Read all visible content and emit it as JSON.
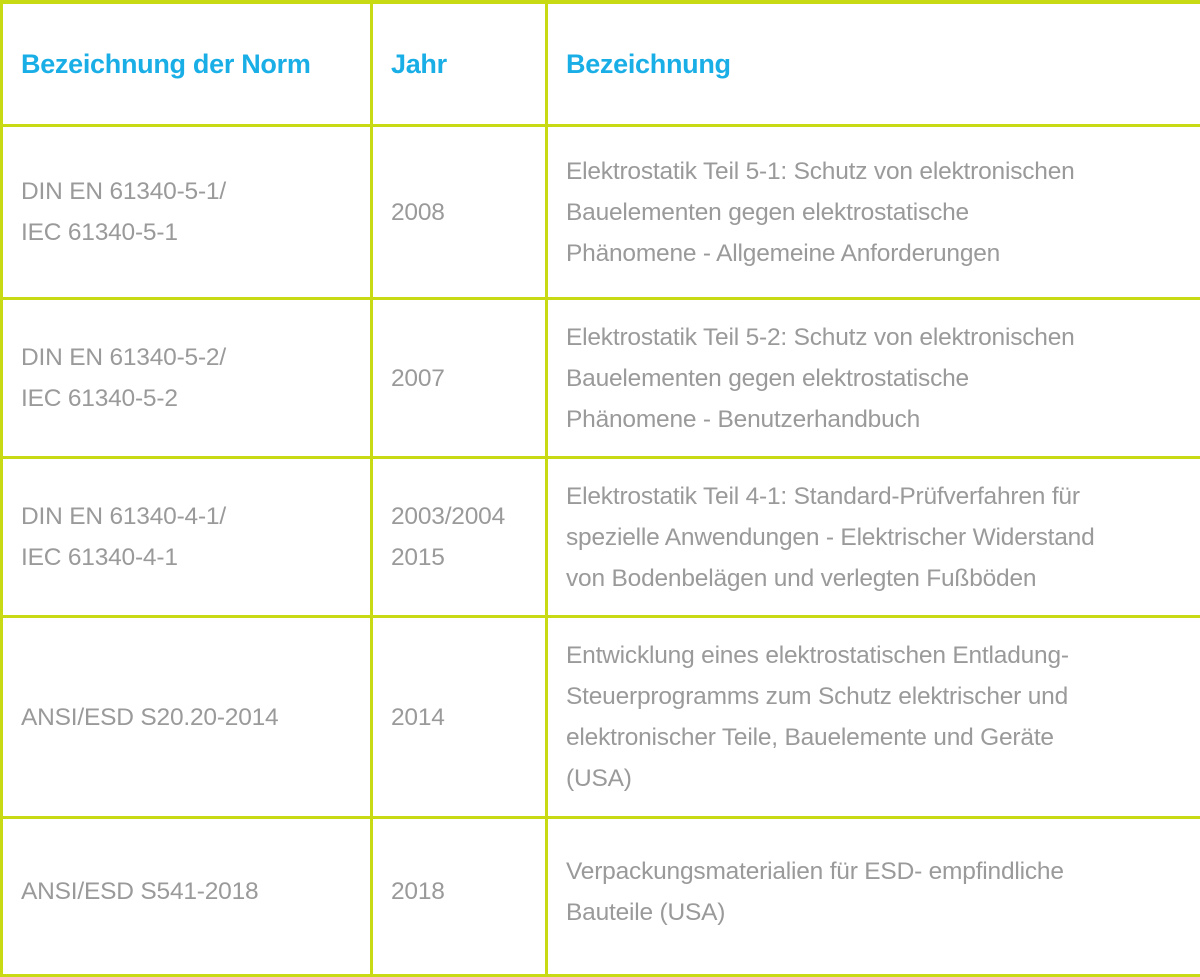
{
  "colors": {
    "border": "#c8da14",
    "header_text": "#19aee6",
    "body_text": "#9a9a9a"
  },
  "headers": [
    "Bezeichnung der Norm",
    "Jahr",
    "Bezeichnung"
  ],
  "rows": [
    {
      "norm": "DIN EN 61340-5-1/\nIEC 61340-5-1",
      "jahr": "2008",
      "bezeichnung": "Elektrostatik Teil 5-1: Schutz von elektronischen\nBauelementen gegen elektrostatische\nPhänomene - Allgemeine Anforderungen"
    },
    {
      "norm": "DIN EN 61340-5-2/\nIEC 61340-5-2",
      "jahr": "2007",
      "bezeichnung": "Elektrostatik Teil 5-2: Schutz von elektronischen\nBauelementen gegen elektrostatische\nPhänomene - Benutzerhandbuch"
    },
    {
      "norm": "DIN EN 61340-4-1/\nIEC 61340-4-1",
      "jahr": "2003/2004\n2015",
      "bezeichnung": "Elektrostatik Teil 4-1: Standard-Prüfverfahren für\nspezielle Anwendungen - Elektrischer Widerstand\nvon Bodenbelägen und verlegten Fußböden"
    },
    {
      "norm": "ANSI/ESD S20.20-2014",
      "jahr": "2014",
      "bezeichnung": "Entwicklung eines elektrostatischen Entladung-\nSteuerprogramms zum Schutz elektrischer und\nelektronischer Teile, Bauelemente und Geräte\n(USA)"
    },
    {
      "norm": "ANSI/ESD S541-2018",
      "jahr": "2018",
      "bezeichnung": "Verpackungsmaterialien für ESD- empfindliche\nBauteile (USA)"
    }
  ]
}
